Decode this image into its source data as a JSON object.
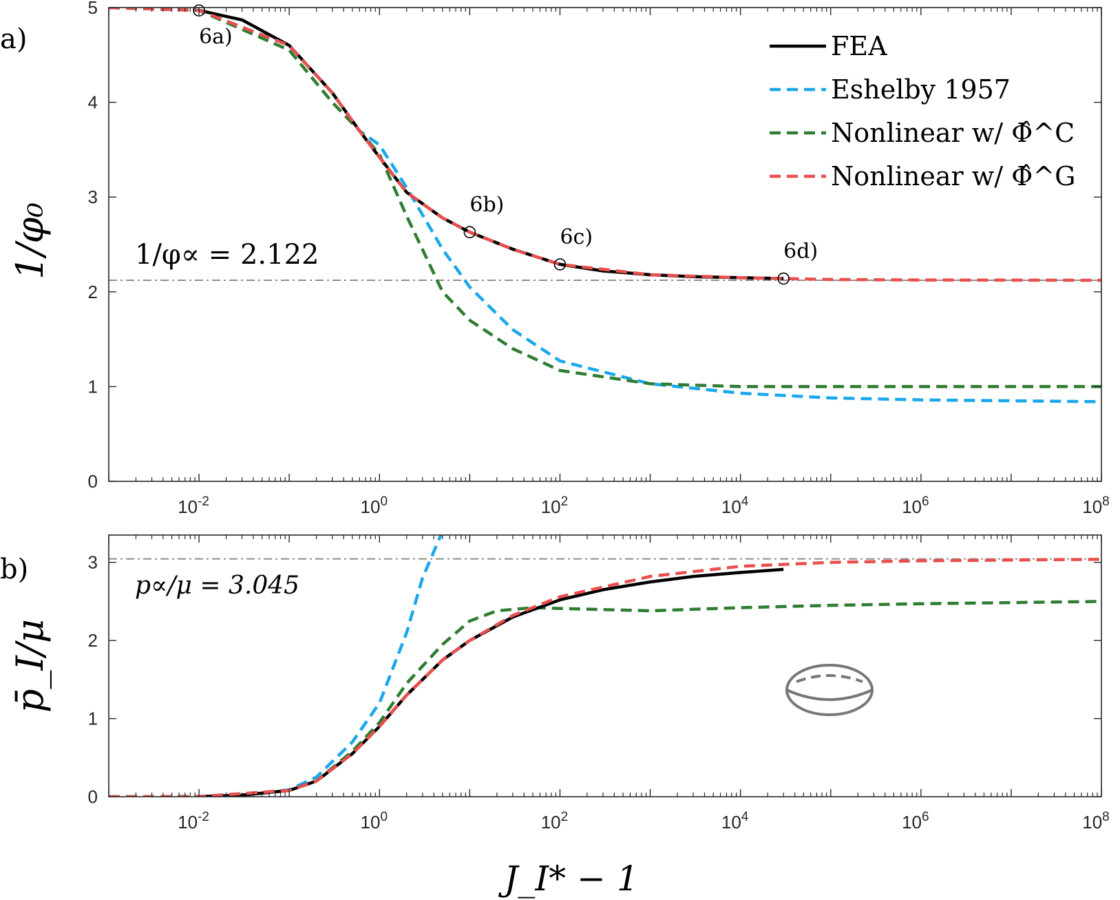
{
  "colors": {
    "fea": "#000000",
    "eshelby": "#1aa7ec",
    "nonlinear_c": "#2e7d32",
    "nonlinear_g": "#e8504f",
    "reference_line": "#8c8c8c",
    "inset_shape": "#777777"
  },
  "figure": {
    "xlabel": "J_I* − 1",
    "inset_icon": "ellipsoid-icon"
  },
  "chart_data": [
    {
      "type": "line",
      "panel_label": "a)",
      "ylabel": "1/φ₀",
      "xscale": "log",
      "xlim": [
        0.001,
        100000000
      ],
      "ylim": [
        0,
        5
      ],
      "xticks": [
        0.01,
        1,
        100,
        10000,
        1000000,
        100000000
      ],
      "xtick_labels": [
        {
          "base": "10",
          "exp": "-2"
        },
        {
          "base": "10",
          "exp": "0"
        },
        {
          "base": "10",
          "exp": "2"
        },
        {
          "base": "10",
          "exp": "4"
        },
        {
          "base": "10",
          "exp": "6"
        },
        {
          "base": "10",
          "exp": "8"
        }
      ],
      "yticks": [
        0,
        1,
        2,
        3,
        4,
        5
      ],
      "ytick_labels": [
        "0",
        "1",
        "2",
        "3",
        "4",
        "5"
      ],
      "legend_position": "top-right",
      "reference_line": {
        "y": 2.122,
        "label": "1/φ∝ = 2.122"
      },
      "markers": [
        {
          "label": "6a)",
          "x": 0.01,
          "y": 4.97
        },
        {
          "label": "6b)",
          "x": 10,
          "y": 2.63
        },
        {
          "label": "6c)",
          "x": 100,
          "y": 2.29
        },
        {
          "label": "6d)",
          "x": 30000,
          "y": 2.14
        }
      ],
      "series": [
        {
          "name": "FEA",
          "style": "solid",
          "color_key": "fea",
          "x": [
            0.01,
            0.03,
            0.1,
            0.3,
            0.6,
            1,
            2,
            5,
            10,
            30,
            100,
            300,
            1000,
            3000,
            10000,
            30000
          ],
          "y": [
            4.97,
            4.87,
            4.6,
            4.1,
            3.7,
            3.42,
            3.05,
            2.78,
            2.63,
            2.45,
            2.29,
            2.22,
            2.18,
            2.16,
            2.15,
            2.14
          ]
        },
        {
          "name": "Eshelby 1957",
          "style": "dashed",
          "color_key": "eshelby",
          "x": [
            0.001,
            0.01,
            0.1,
            0.3,
            0.6,
            1,
            2,
            5,
            10,
            30,
            100,
            1000,
            10000,
            100000,
            1000000,
            100000000
          ],
          "y": [
            5.0,
            4.97,
            4.6,
            4.1,
            3.7,
            3.55,
            3.1,
            2.45,
            2.05,
            1.6,
            1.27,
            1.03,
            0.93,
            0.88,
            0.86,
            0.84
          ]
        },
        {
          "name": "Nonlinear w/ Φ̂^C",
          "style": "dashed",
          "color_key": "nonlinear_c",
          "x": [
            0.001,
            0.01,
            0.1,
            0.3,
            0.6,
            1,
            2,
            5,
            10,
            30,
            100,
            1000,
            10000,
            100000,
            1000000,
            100000000
          ],
          "y": [
            5.0,
            4.97,
            4.55,
            4.0,
            3.7,
            3.45,
            2.8,
            2.0,
            1.7,
            1.4,
            1.17,
            1.03,
            1.0,
            1.0,
            1.0,
            1.0
          ]
        },
        {
          "name": "Nonlinear w/ Φ̂^G",
          "style": "dashed",
          "color_key": "nonlinear_g",
          "x": [
            0.001,
            0.01,
            0.1,
            0.3,
            0.6,
            1,
            2,
            5,
            10,
            30,
            100,
            1000,
            10000,
            100000,
            1000000,
            100000000
          ],
          "y": [
            5.0,
            4.97,
            4.6,
            4.1,
            3.7,
            3.42,
            3.05,
            2.78,
            2.63,
            2.45,
            2.29,
            2.18,
            2.15,
            2.13,
            2.125,
            2.122
          ]
        }
      ]
    },
    {
      "type": "line",
      "panel_label": "b)",
      "ylabel": "p̄_I/μ",
      "xlabel": "J_I* − 1",
      "xscale": "log",
      "xlim": [
        0.001,
        100000000
      ],
      "ylim": [
        0,
        3.35
      ],
      "xticks": [
        0.01,
        1,
        100,
        10000,
        1000000,
        100000000
      ],
      "xtick_labels": [
        {
          "base": "10",
          "exp": "-2"
        },
        {
          "base": "10",
          "exp": "0"
        },
        {
          "base": "10",
          "exp": "2"
        },
        {
          "base": "10",
          "exp": "4"
        },
        {
          "base": "10",
          "exp": "6"
        },
        {
          "base": "10",
          "exp": "8"
        }
      ],
      "yticks": [
        0,
        1,
        2,
        3
      ],
      "ytick_labels": [
        "0",
        "1",
        "2",
        "3"
      ],
      "reference_line": {
        "y": 3.045,
        "label": "p∝/μ = 3.045"
      },
      "series": [
        {
          "name": "FEA",
          "style": "solid",
          "color_key": "fea",
          "x": [
            0.01,
            0.03,
            0.1,
            0.2,
            0.5,
            1,
            2,
            5,
            10,
            30,
            100,
            300,
            1000,
            3000,
            10000,
            30000
          ],
          "y": [
            0.003,
            0.02,
            0.08,
            0.2,
            0.55,
            0.9,
            1.3,
            1.75,
            2.0,
            2.3,
            2.52,
            2.65,
            2.75,
            2.82,
            2.87,
            2.91
          ]
        },
        {
          "name": "Eshelby 1957",
          "style": "dashed",
          "color_key": "eshelby",
          "x": [
            0.001,
            0.01,
            0.03,
            0.1,
            0.2,
            0.5,
            1,
            2,
            3,
            5
          ],
          "y": [
            0.0,
            0.004,
            0.02,
            0.09,
            0.25,
            0.7,
            1.2,
            2.1,
            2.8,
            3.4
          ]
        },
        {
          "name": "Nonlinear w/ Φ̂^C",
          "style": "dashed",
          "color_key": "nonlinear_c",
          "x": [
            0.001,
            0.01,
            0.1,
            0.2,
            0.5,
            1,
            2,
            5,
            10,
            20,
            50,
            100,
            1000,
            10000,
            100000,
            1000000,
            100000000
          ],
          "y": [
            0.0,
            0.003,
            0.08,
            0.2,
            0.58,
            0.95,
            1.45,
            1.95,
            2.25,
            2.38,
            2.42,
            2.41,
            2.38,
            2.42,
            2.45,
            2.47,
            2.5
          ]
        },
        {
          "name": "Nonlinear w/ Φ̂^G",
          "style": "dashed",
          "color_key": "nonlinear_g",
          "x": [
            0.001,
            0.01,
            0.1,
            0.2,
            0.5,
            1,
            2,
            5,
            10,
            30,
            100,
            1000,
            10000,
            100000,
            1000000,
            100000000
          ],
          "y": [
            0.0,
            0.003,
            0.08,
            0.2,
            0.55,
            0.9,
            1.3,
            1.75,
            2.0,
            2.32,
            2.56,
            2.82,
            2.95,
            3.0,
            3.02,
            3.04
          ]
        }
      ]
    }
  ]
}
